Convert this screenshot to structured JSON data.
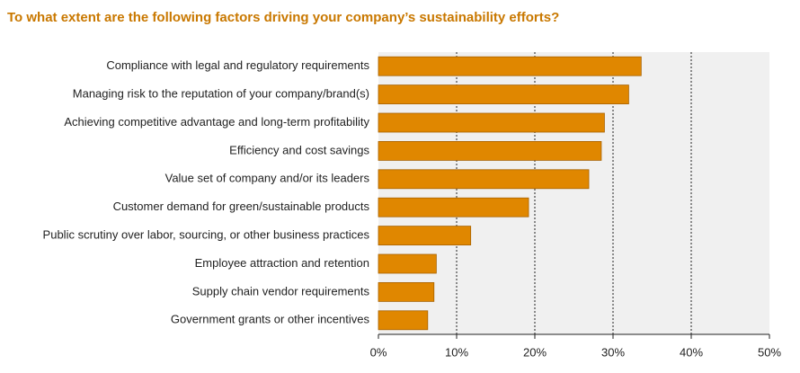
{
  "chart_data": {
    "type": "barh",
    "title": "To what extent are the following factors driving your company’s sustainability efforts?",
    "categories": [
      "Compliance with legal and regulatory requirements",
      "Managing risk to the reputation of your company/brand(s)",
      "Achieving competitive advantage and long-term profitability",
      "Efficiency and cost savings",
      "Value set of company and/or its leaders",
      "Customer demand for green/sustainable products",
      "Public scrutiny over labor, sourcing, or other business practices",
      "Employee attraction and retention",
      "Supply chain vendor requirements",
      "Government grants or other incentives"
    ],
    "values": [
      33.6,
      32.0,
      28.9,
      28.5,
      26.9,
      19.2,
      11.8,
      7.4,
      7.1,
      6.3
    ],
    "color": "#e08700",
    "xlim": [
      0,
      50
    ],
    "xticks": [
      {
        "value": 0,
        "label": "0%"
      },
      {
        "value": 10,
        "label": "10%"
      },
      {
        "value": 20,
        "label": "20%"
      },
      {
        "value": 30,
        "label": "30%"
      },
      {
        "value": 40,
        "label": "40%"
      },
      {
        "value": 50,
        "label": "50%"
      }
    ],
    "grid": true
  }
}
